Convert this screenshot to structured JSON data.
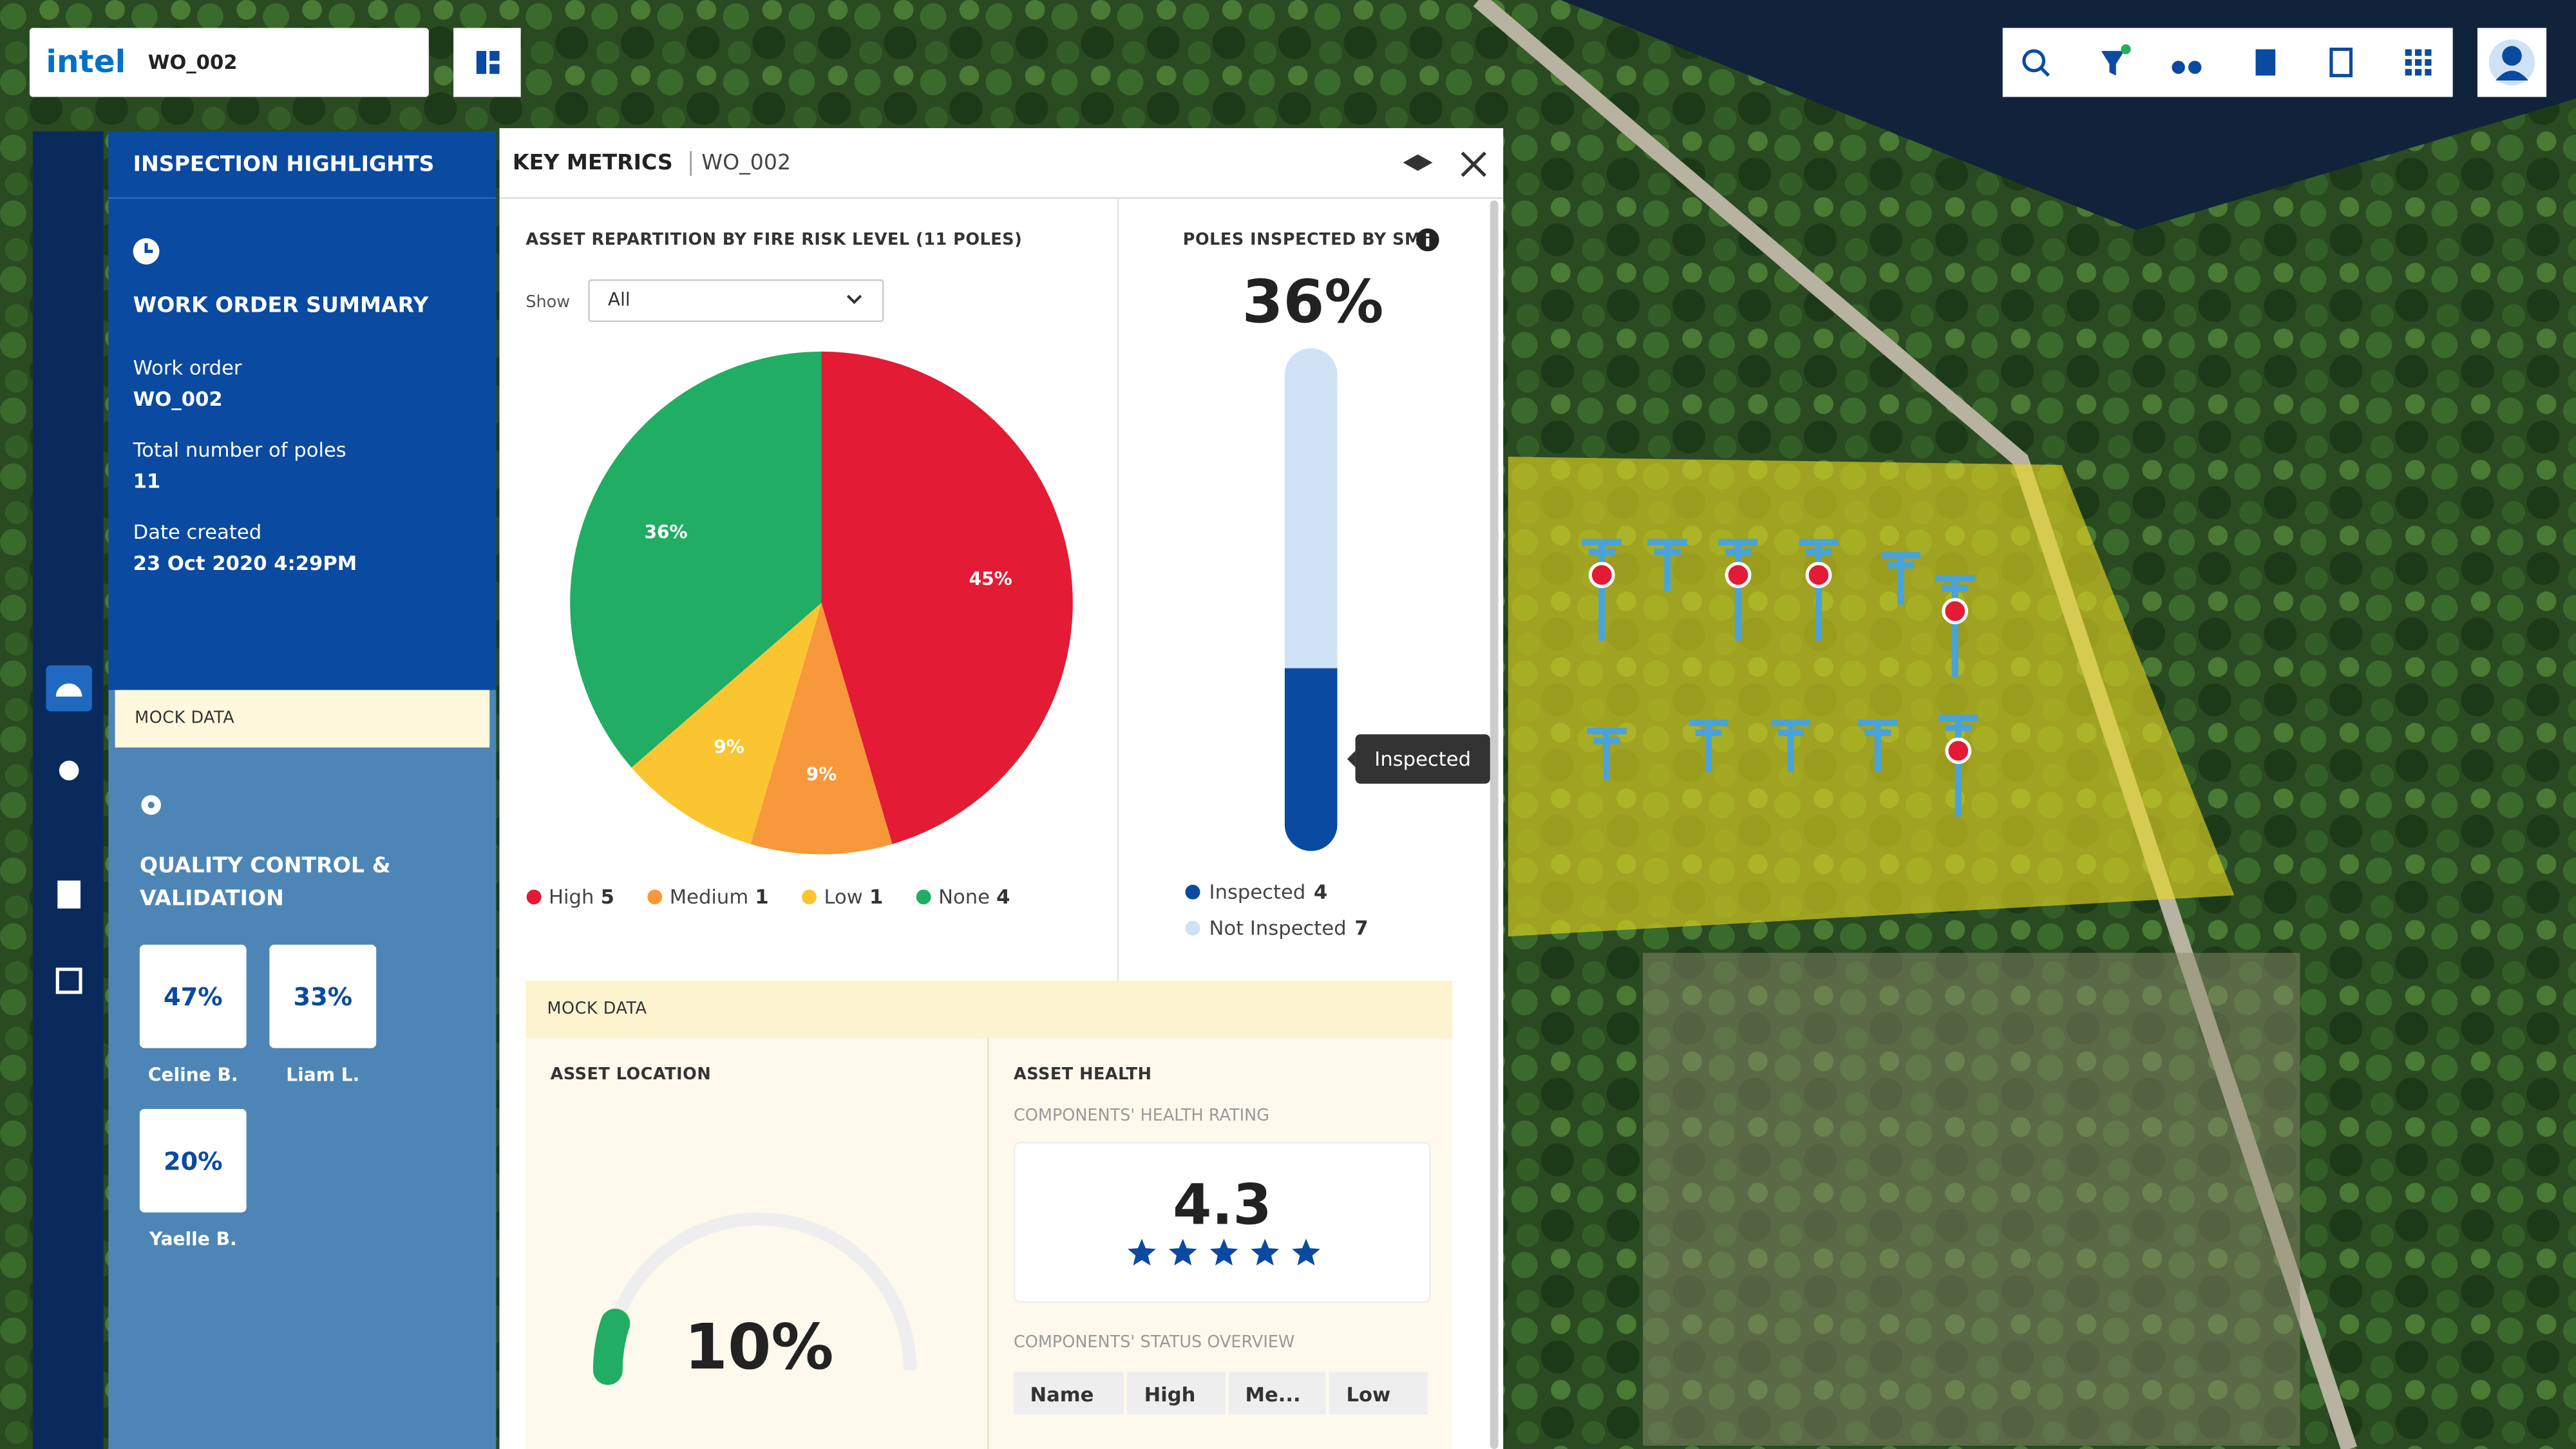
{
  "header": {
    "brand": "intel",
    "work_order": "WO_002"
  },
  "sidebar": {
    "title": "INSPECTION HIGHLIGHTS",
    "summary_title": "WORK ORDER SUMMARY",
    "fields": [
      {
        "label": "Work order",
        "value": "WO_002"
      },
      {
        "label": "Total number of poles",
        "value": "11"
      },
      {
        "label": "Date created",
        "value": "23 Oct 2020 4:29PM"
      }
    ],
    "mock_label": "MOCK DATA",
    "qc_title": "QUALITY CONTROL & VALIDATION",
    "qc": [
      {
        "value": "47%",
        "name": "Celine B."
      },
      {
        "value": "33%",
        "name": "Liam L."
      },
      {
        "value": "20%",
        "name": "Yaelle B."
      }
    ]
  },
  "panel": {
    "title": "KEY METRICS",
    "work_order": "WO_002"
  },
  "risk_chart": {
    "type": "pie",
    "title": "ASSET REPARTITION BY FIRE RISK LEVEL (11 POLES)",
    "show_label": "Show",
    "show_value": "All",
    "categories": [
      "High",
      "Medium",
      "Low",
      "None"
    ],
    "values": [
      45,
      9,
      9,
      36
    ],
    "value_labels": [
      "45%",
      "9%",
      "9%",
      "36%"
    ],
    "counts": [
      5,
      1,
      1,
      4
    ],
    "colors": [
      "#e31b34",
      "#f7993a",
      "#fbc531",
      "#21ad63"
    ]
  },
  "inspection": {
    "title": "POLES INSPECTED BY SME",
    "percent": 36,
    "percent_label": "36%",
    "series": [
      {
        "name": "Inspected",
        "value": 4,
        "color": "#0a4aa0"
      },
      {
        "name": "Not Inspected",
        "value": 7,
        "color": "#cfe2f5"
      }
    ],
    "tooltip": "Inspected"
  },
  "mock": {
    "label": "MOCK DATA",
    "location": {
      "title": "ASSET LOCATION",
      "value": 10,
      "value_label": "10%"
    },
    "health": {
      "title": "ASSET HEALTH",
      "rating_title": "COMPONENTS' HEALTH RATING",
      "rating": "4.3",
      "status_title": "COMPONENTS' STATUS OVERVIEW",
      "columns": [
        "Name",
        "High",
        "Me...",
        "Low"
      ]
    }
  }
}
